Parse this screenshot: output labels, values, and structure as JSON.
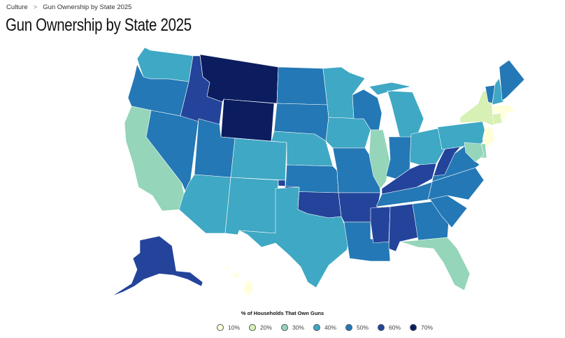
{
  "breadcrumb": {
    "parent": "Culture",
    "separator": ">",
    "current": "Gun Ownership by State 2025"
  },
  "page_title": "Gun Ownership by State 2025",
  "legend": {
    "title": "% of Households That Own Guns",
    "items": [
      {
        "label": "10%",
        "color": "#ffffd9"
      },
      {
        "label": "20%",
        "color": "#d7f0b3"
      },
      {
        "label": "30%",
        "color": "#95d5b9"
      },
      {
        "label": "40%",
        "color": "#3fa8c4"
      },
      {
        "label": "50%",
        "color": "#2478b5"
      },
      {
        "label": "60%",
        "color": "#23449a"
      },
      {
        "label": "70%",
        "color": "#0b1d5f"
      }
    ]
  },
  "map_data": {
    "metric": "% of Households That Own Guns",
    "states": [
      {
        "state": "WA",
        "bin": "40%"
      },
      {
        "state": "OR",
        "bin": "50%"
      },
      {
        "state": "CA",
        "bin": "30%"
      },
      {
        "state": "NV",
        "bin": "50%"
      },
      {
        "state": "ID",
        "bin": "60%"
      },
      {
        "state": "MT",
        "bin": "70%"
      },
      {
        "state": "WY",
        "bin": "70%"
      },
      {
        "state": "UT",
        "bin": "50%"
      },
      {
        "state": "AZ",
        "bin": "40%"
      },
      {
        "state": "CO",
        "bin": "40%"
      },
      {
        "state": "NM",
        "bin": "40%"
      },
      {
        "state": "ND",
        "bin": "50%"
      },
      {
        "state": "SD",
        "bin": "50%"
      },
      {
        "state": "NE",
        "bin": "40%"
      },
      {
        "state": "KS",
        "bin": "50%"
      },
      {
        "state": "OK",
        "bin": "60%"
      },
      {
        "state": "TX",
        "bin": "40%"
      },
      {
        "state": "MN",
        "bin": "40%"
      },
      {
        "state": "IA",
        "bin": "40%"
      },
      {
        "state": "MO",
        "bin": "50%"
      },
      {
        "state": "AR",
        "bin": "60%"
      },
      {
        "state": "LA",
        "bin": "50%"
      },
      {
        "state": "WI",
        "bin": "50%"
      },
      {
        "state": "IL",
        "bin": "30%"
      },
      {
        "state": "MI",
        "bin": "40%"
      },
      {
        "state": "IN",
        "bin": "50%"
      },
      {
        "state": "OH",
        "bin": "40%"
      },
      {
        "state": "KY",
        "bin": "60%"
      },
      {
        "state": "TN",
        "bin": "50%"
      },
      {
        "state": "MS",
        "bin": "60%"
      },
      {
        "state": "AL",
        "bin": "60%"
      },
      {
        "state": "GA",
        "bin": "50%"
      },
      {
        "state": "FL",
        "bin": "30%"
      },
      {
        "state": "SC",
        "bin": "50%"
      },
      {
        "state": "NC",
        "bin": "50%"
      },
      {
        "state": "VA",
        "bin": "50%"
      },
      {
        "state": "WV",
        "bin": "60%"
      },
      {
        "state": "PA",
        "bin": "40%"
      },
      {
        "state": "NY",
        "bin": "20%"
      },
      {
        "state": "VT",
        "bin": "50%"
      },
      {
        "state": "NH",
        "bin": "40%"
      },
      {
        "state": "ME",
        "bin": "50%"
      },
      {
        "state": "MA",
        "bin": "10%"
      },
      {
        "state": "CT",
        "bin": "20%"
      },
      {
        "state": "RI",
        "bin": "10%"
      },
      {
        "state": "NJ",
        "bin": "10%"
      },
      {
        "state": "DE",
        "bin": "30%"
      },
      {
        "state": "MD",
        "bin": "30%"
      },
      {
        "state": "AK",
        "bin": "60%"
      },
      {
        "state": "HI",
        "bin": "10%"
      }
    ]
  }
}
